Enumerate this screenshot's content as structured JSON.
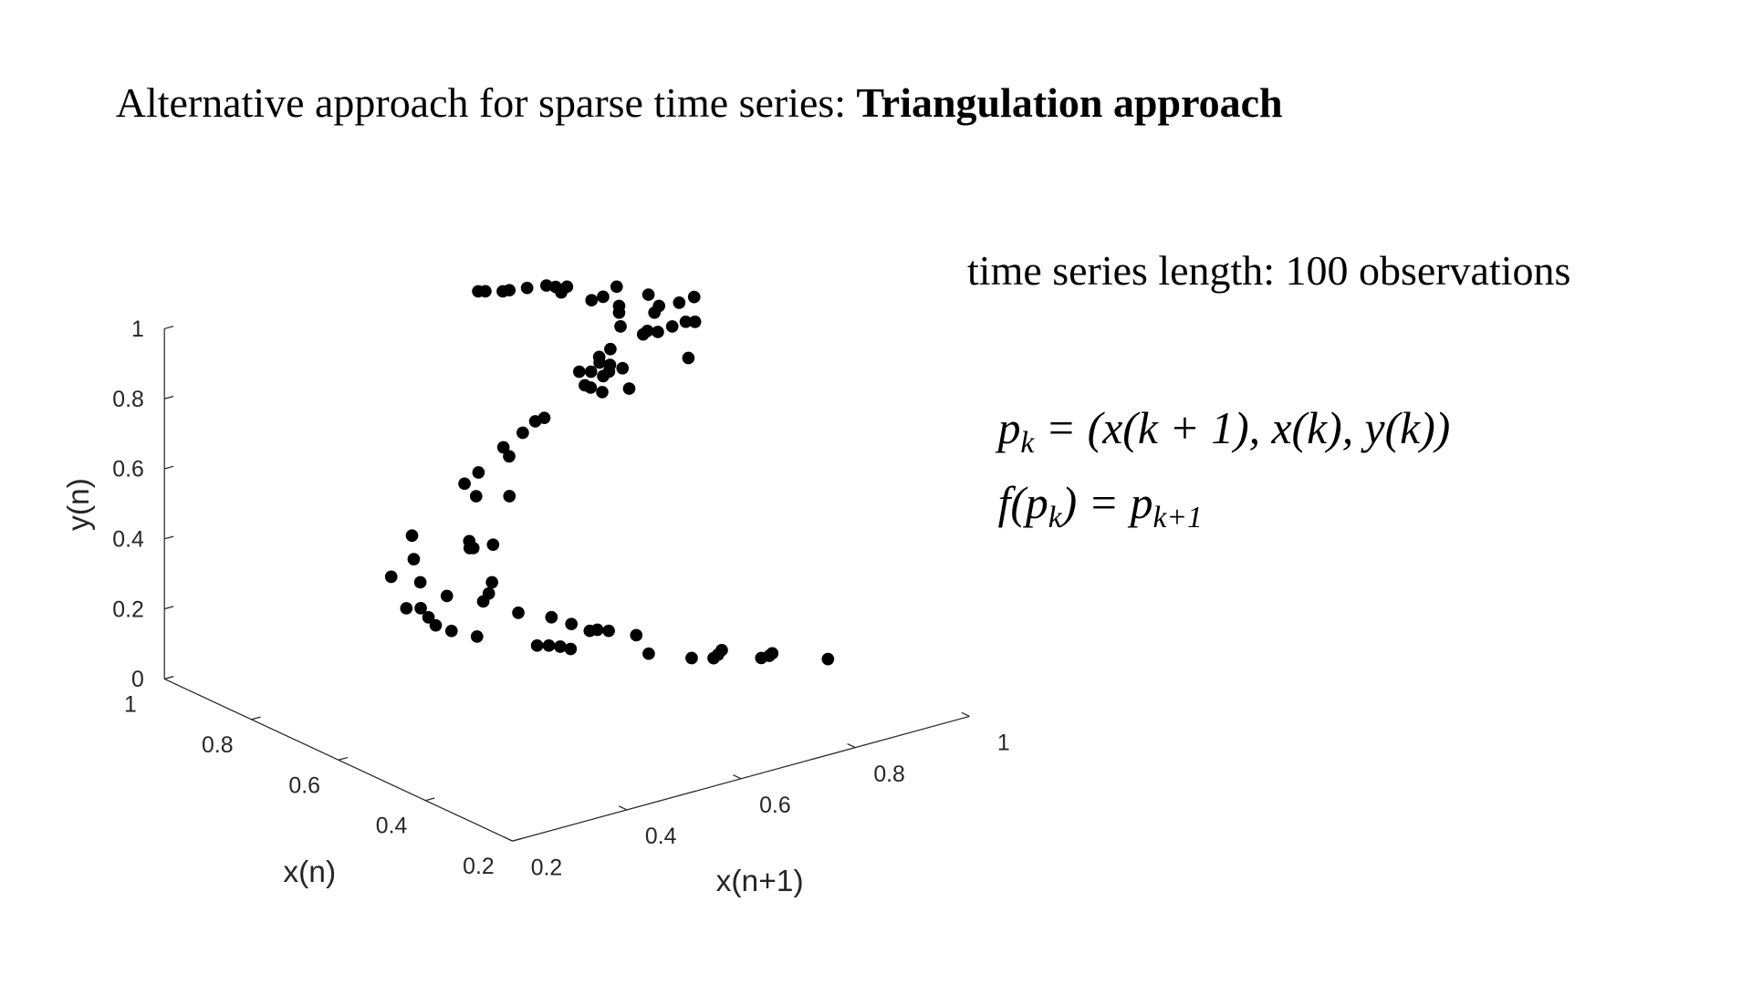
{
  "title": {
    "normal": "Alternative approach for sparse time series: ",
    "bold": "Triangulation approach"
  },
  "note": "time series length: 100 observations",
  "equations": [
    {
      "base": "p",
      "sub": "k",
      "rest": " = (x(k + 1), x(k), y(k))"
    },
    {
      "base": "f(p",
      "sub": "k",
      "rest": ") = p",
      "sub2": "k+1"
    }
  ],
  "chart_data": {
    "type": "scatter3d",
    "xlabel": "x(n+1)",
    "ylabel": "x(n)",
    "zlabel": "y(n)",
    "color": "#000000",
    "xlim": [
      0.2,
      1
    ],
    "ylim": [
      0.2,
      1
    ],
    "zlim": [
      0,
      1
    ],
    "xticks": [
      0.2,
      0.4,
      0.6,
      0.8,
      1
    ],
    "yticks": [
      0.2,
      0.4,
      0.6,
      0.8,
      1
    ],
    "zticks": [
      0,
      0.2,
      0.4,
      0.6,
      0.8,
      1
    ],
    "x": [
      0.635,
      0.643,
      0.662,
      0.672,
      0.697,
      0.724,
      0.731,
      0.724,
      0.744,
      0.822,
      0.843,
      0.882,
      0.839,
      0.823,
      0.898,
      0.883,
      0.862,
      0.913,
      0.943,
      0.792,
      0.798,
      0.811,
      0.82,
      0.849,
      0.875,
      0.885,
      0.792,
      0.727,
      0.696,
      0.689,
      0.695,
      0.639,
      0.652,
      0.655,
      0.672,
      0.613,
      0.614,
      0.616,
      0.654,
      0.683,
      0.657,
      0.639,
      0.598,
      0.542,
      0.527,
      0.455,
      0.413,
      0.396,
      0.433,
      0.448,
      0.432,
      0.436,
      0.466,
      0.398,
      0.427,
      0.504,
      0.485,
      0.501,
      0.583,
      0.553,
      0.528,
      0.51,
      0.526,
      0.513,
      0.502,
      0.506,
      0.521,
      0.623,
      0.732,
      0.738,
      0.742,
      0.753,
      0.763,
      0.783,
      0.649,
      0.662,
      0.672,
      0.678,
      0.753,
      0.79,
      0.814,
      0.842,
      0.827,
      0.867,
      0.89,
      0.881,
      0.938
    ],
    "y": [
      0.85,
      0.844,
      0.829,
      0.827,
      0.819,
      0.81,
      0.798,
      0.776,
      0.789,
      0.835,
      0.836,
      0.856,
      0.794,
      0.773,
      0.804,
      0.76,
      0.743,
      0.753,
      0.758,
      0.729,
      0.685,
      0.692,
      0.68,
      0.685,
      0.688,
      0.68,
      0.573,
      0.667,
      0.652,
      0.618,
      0.597,
      0.623,
      0.613,
      0.589,
      0.598,
      0.576,
      0.564,
      0.54,
      0.528,
      0.634,
      0.727,
      0.724,
      0.699,
      0.67,
      0.637,
      0.613,
      0.59,
      0.541,
      0.513,
      0.625,
      0.603,
      0.6,
      0.594,
      0.691,
      0.725,
      0.811,
      0.853,
      0.746,
      0.75,
      0.718,
      0.698,
      0.851,
      0.839,
      0.804,
      0.773,
      0.742,
      0.703,
      0.742,
      0.809,
      0.771,
      0.734,
      0.731,
      0.718,
      0.681,
      0.733,
      0.723,
      0.71,
      0.694,
      0.613,
      0.563,
      0.544,
      0.562,
      0.551,
      0.504,
      0.509,
      0.504,
      0.444
    ],
    "z": [
      1,
      1,
      1,
      1,
      1,
      1,
      1,
      1,
      1,
      0.9,
      0.9,
      0.9,
      0.9,
      0.9,
      0.9,
      0.9,
      0.9,
      0.9,
      0.9,
      0.9,
      0.9,
      0.9,
      0.9,
      0.9,
      0.9,
      0.9,
      0.9,
      0.9,
      0.9,
      0.9,
      0.9,
      0.9,
      0.9,
      0.9,
      0.9,
      0.9,
      0.9,
      0.9,
      0.9,
      0.9,
      0.7,
      0.7,
      0.7,
      0.7,
      0.7,
      0.7,
      0.7,
      0.7,
      0.7,
      0.5,
      0.5,
      0.5,
      0.5,
      0.5,
      0.4,
      0.25,
      0.25,
      0.25,
      0.25,
      0.25,
      0.25,
      0.15,
      0.15,
      0.15,
      0.15,
      0.15,
      0.15,
      0.15,
      0.05,
      0.05,
      0.05,
      0.05,
      0.05,
      0.05,
      0.05,
      0.05,
      0.05,
      0.05,
      0.05,
      0.05,
      0.05,
      0.05,
      0.05,
      0.05,
      0.05,
      0.05,
      0.05
    ]
  }
}
